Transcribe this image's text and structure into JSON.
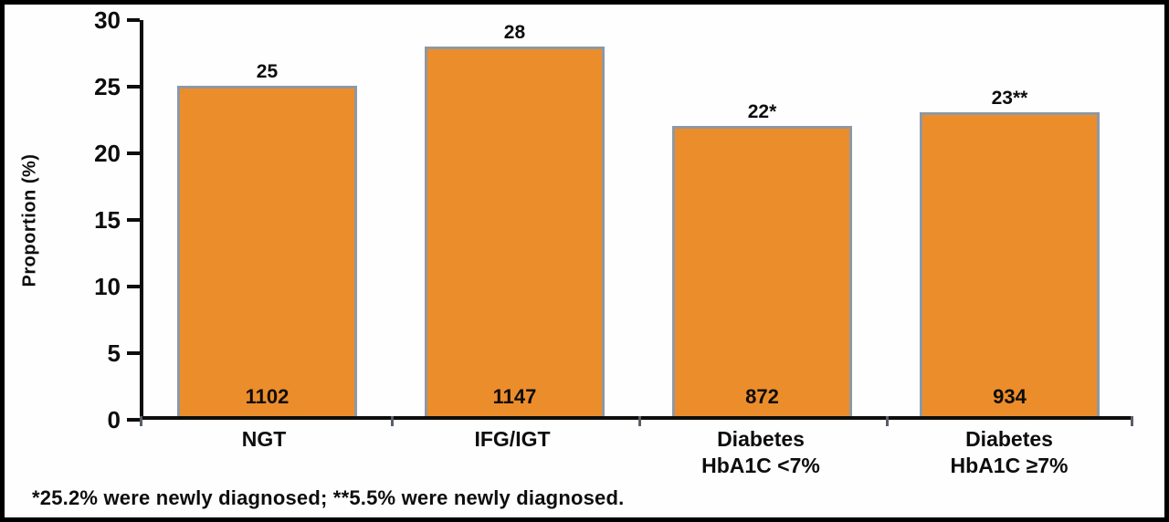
{
  "chart_data": {
    "type": "bar",
    "categories": [
      "NGT",
      "IFG/IGT",
      "Diabetes HbA1C <7%",
      "Diabetes HbA1C ≥7%"
    ],
    "category_lines": [
      [
        "NGT"
      ],
      [
        "IFG/IGT"
      ],
      [
        "Diabetes",
        "HbA1C <7%"
      ],
      [
        "Diabetes",
        "HbA1C ≥7%"
      ]
    ],
    "values": [
      25,
      28,
      22,
      23
    ],
    "value_labels": [
      "25",
      "28",
      "22*",
      "23**"
    ],
    "bar_counts": [
      "1102",
      "1147",
      "872",
      "934"
    ],
    "title": "",
    "xlabel": "",
    "ylabel": "Proportion (%)",
    "ylim": [
      0,
      30
    ],
    "yticks": [
      0,
      5,
      10,
      15,
      20,
      25,
      30
    ],
    "grid": false,
    "legend": "none",
    "bar_color": "#EC8D2B",
    "bar_border_color": "#8e98a4",
    "footnote": "*25.2% were newly diagnosed; **5.5% were newly diagnosed."
  }
}
